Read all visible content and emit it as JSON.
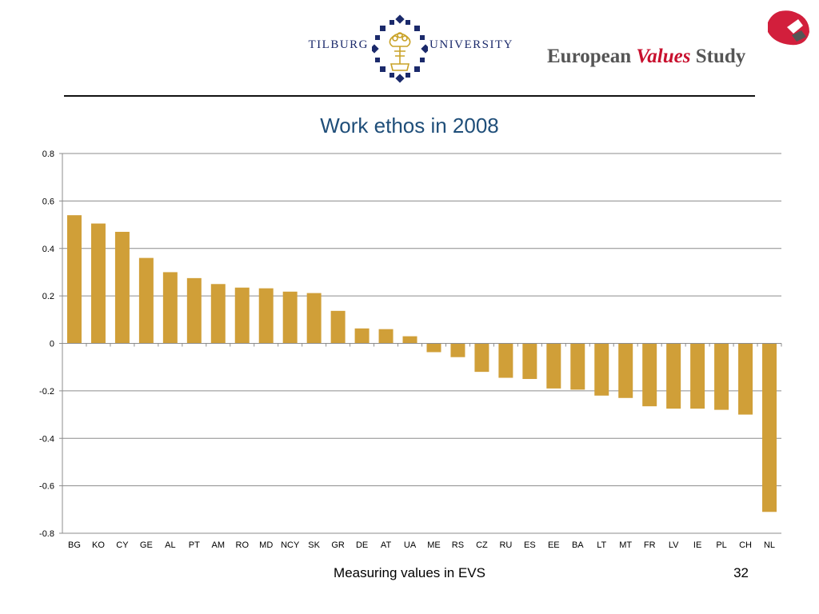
{
  "header": {
    "tilburg_left": "Tilburg",
    "tilburg_right": "University",
    "evs_part1": "European",
    "evs_part2": "Values",
    "evs_part3": "Study"
  },
  "chart_data": {
    "type": "bar",
    "title": "Work ethos in 2008",
    "xlabel": "",
    "ylabel": "",
    "ylim": [
      -0.8,
      0.8
    ],
    "yticks": [
      0.8,
      0.6,
      0.4,
      0.2,
      0,
      -0.2,
      -0.4,
      -0.6,
      -0.8
    ],
    "ytick_labels": [
      "0.8",
      "0.6",
      "0.4",
      "0.2",
      "0",
      "-0.2",
      "-0.4",
      "-0.6",
      "-0.8"
    ],
    "grid": true,
    "legend": "none",
    "bar_color": "#d09f38",
    "categories": [
      "BG",
      "KO",
      "CY",
      "GE",
      "AL",
      "PT",
      "AM",
      "RO",
      "MD",
      "NCY",
      "SK",
      "GR",
      "DE",
      "AT",
      "UA",
      "ME",
      "RS",
      "CZ",
      "RU",
      "ES",
      "EE",
      "BA",
      "LT",
      "MT",
      "FR",
      "LV",
      "IE",
      "PL",
      "CH",
      "NL"
    ],
    "values": [
      0.54,
      0.505,
      0.47,
      0.36,
      0.3,
      0.275,
      0.25,
      0.235,
      0.232,
      0.218,
      0.212,
      0.137,
      0.063,
      0.06,
      0.03,
      -0.037,
      -0.058,
      -0.12,
      -0.145,
      -0.15,
      -0.19,
      -0.195,
      -0.22,
      -0.23,
      -0.265,
      -0.275,
      -0.275,
      -0.28,
      -0.3,
      -0.71
    ]
  },
  "footer": {
    "text": "Measuring values in EVS",
    "page_number": "32"
  }
}
